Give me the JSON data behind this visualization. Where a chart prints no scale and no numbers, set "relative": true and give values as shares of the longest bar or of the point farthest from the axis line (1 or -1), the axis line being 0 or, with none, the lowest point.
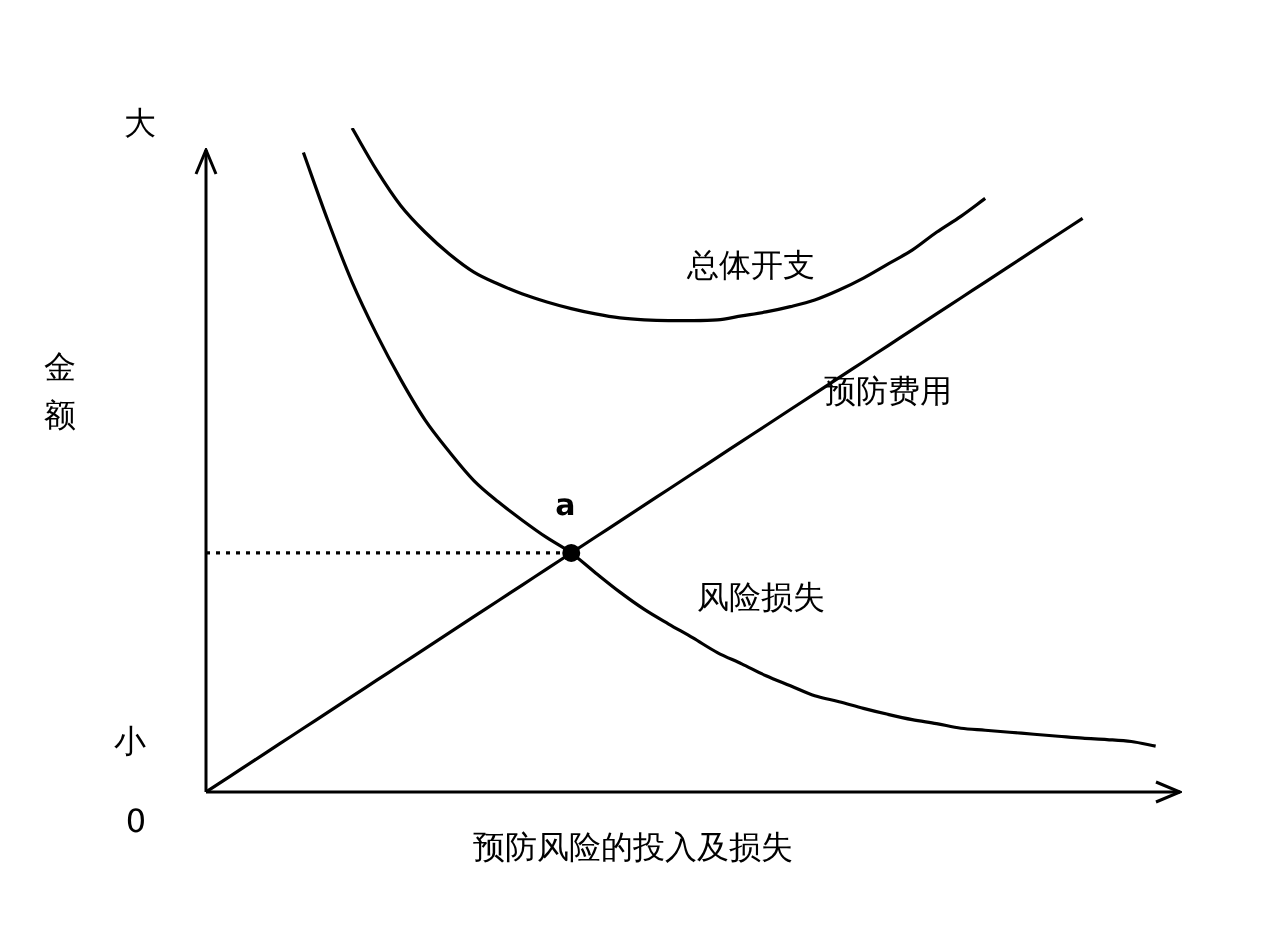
{
  "chart_data": {
    "type": "line",
    "relative": true,
    "xlabel": "预防风险的投入及损失",
    "ylabel": "金额",
    "marker": "none",
    "line_style": "solid",
    "legend": false,
    "tick_labels": false,
    "categories": [
      null,
      null,
      null,
      null,
      null,
      null,
      null,
      null,
      null,
      null,
      null,
      null,
      null,
      null,
      null,
      null,
      null,
      null,
      null,
      null,
      null,
      null,
      null,
      null,
      null,
      null,
      null,
      null,
      null,
      null,
      null,
      null,
      null,
      null,
      null,
      null,
      null,
      null,
      null,
      null,
      null
    ],
    "series": [
      {
        "name": "总体开支",
        "color": "#000000",
        "values": [
          null,
          null,
          null,
          null,
          null,
          null,
          1.0,
          0.937,
          0.883,
          0.843,
          0.81,
          0.783,
          0.765,
          0.75,
          0.738,
          0.728,
          0.72,
          0.714,
          0.711,
          0.71,
          0.71,
          0.711,
          0.717,
          0.723,
          0.731,
          0.741,
          0.756,
          0.774,
          0.795,
          0.816,
          0.843,
          0.867,
          0.894,
          null,
          null,
          null,
          null,
          null,
          null,
          null,
          null
        ]
      },
      {
        "name": "预防费用",
        "color": "#000000",
        "values": [
          0,
          0.024,
          0.048,
          0.072,
          0.096,
          0.12,
          0.144,
          0.168,
          0.192,
          0.216,
          0.24,
          0.264,
          0.288,
          0.312,
          0.336,
          0.36,
          0.384,
          0.408,
          0.432,
          0.456,
          0.48,
          0.504,
          0.528,
          0.552,
          0.576,
          0.6,
          0.624,
          0.648,
          0.672,
          0.696,
          0.72,
          0.744,
          0.768,
          0.792,
          0.816,
          0.84,
          0.864,
          null,
          null,
          null,
          null
        ]
      },
      {
        "name": "风险损失",
        "color": "#000000",
        "values": [
          null,
          null,
          null,
          null,
          0.963,
          0.861,
          0.768,
          0.69,
          0.621,
          0.56,
          0.512,
          0.469,
          0.437,
          0.409,
          0.383,
          0.36,
          0.33,
          0.301,
          0.275,
          0.253,
          0.232,
          0.21,
          0.193,
          0.175,
          0.16,
          0.145,
          0.136,
          0.126,
          0.117,
          0.109,
          0.103,
          0.096,
          0.093,
          0.09,
          0.087,
          0.084,
          0.081,
          0.079,
          0.076,
          0.069,
          null
        ]
      },
      {
        "color": "#000000",
        "line_style": "dotted",
        "values": [
          0.36,
          0.36,
          0.36,
          0.36,
          0.36,
          0.36,
          0.36,
          0.36,
          0.36,
          0.36,
          0.36,
          0.36,
          0.36,
          0.36,
          0.36,
          0.36,
          null,
          null,
          null,
          null,
          null,
          null,
          null,
          null,
          null,
          null,
          null,
          null,
          null,
          null,
          null,
          null,
          null,
          null,
          null,
          null,
          null,
          null,
          null,
          null,
          null
        ]
      }
    ],
    "annotations": [
      {
        "text": "a",
        "y": 0.36
      },
      "大",
      "小",
      "0"
    ]
  }
}
